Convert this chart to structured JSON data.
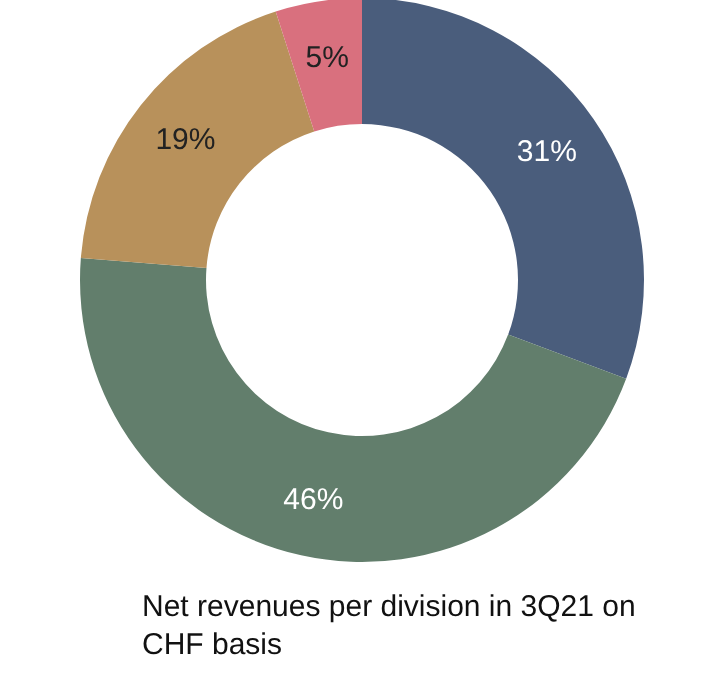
{
  "chart_data": {
    "type": "donut",
    "title": "Net revenues per division in 3Q21 on CHF basis",
    "categories": [
      null,
      null,
      null,
      null
    ],
    "values": [
      31,
      46,
      19,
      5
    ],
    "value_labels": [
      "31%",
      "46%",
      "19%",
      "5%"
    ],
    "colors": [
      "#4a5d7c",
      "#627e6c",
      "#b8915b",
      "#d9707e"
    ]
  }
}
